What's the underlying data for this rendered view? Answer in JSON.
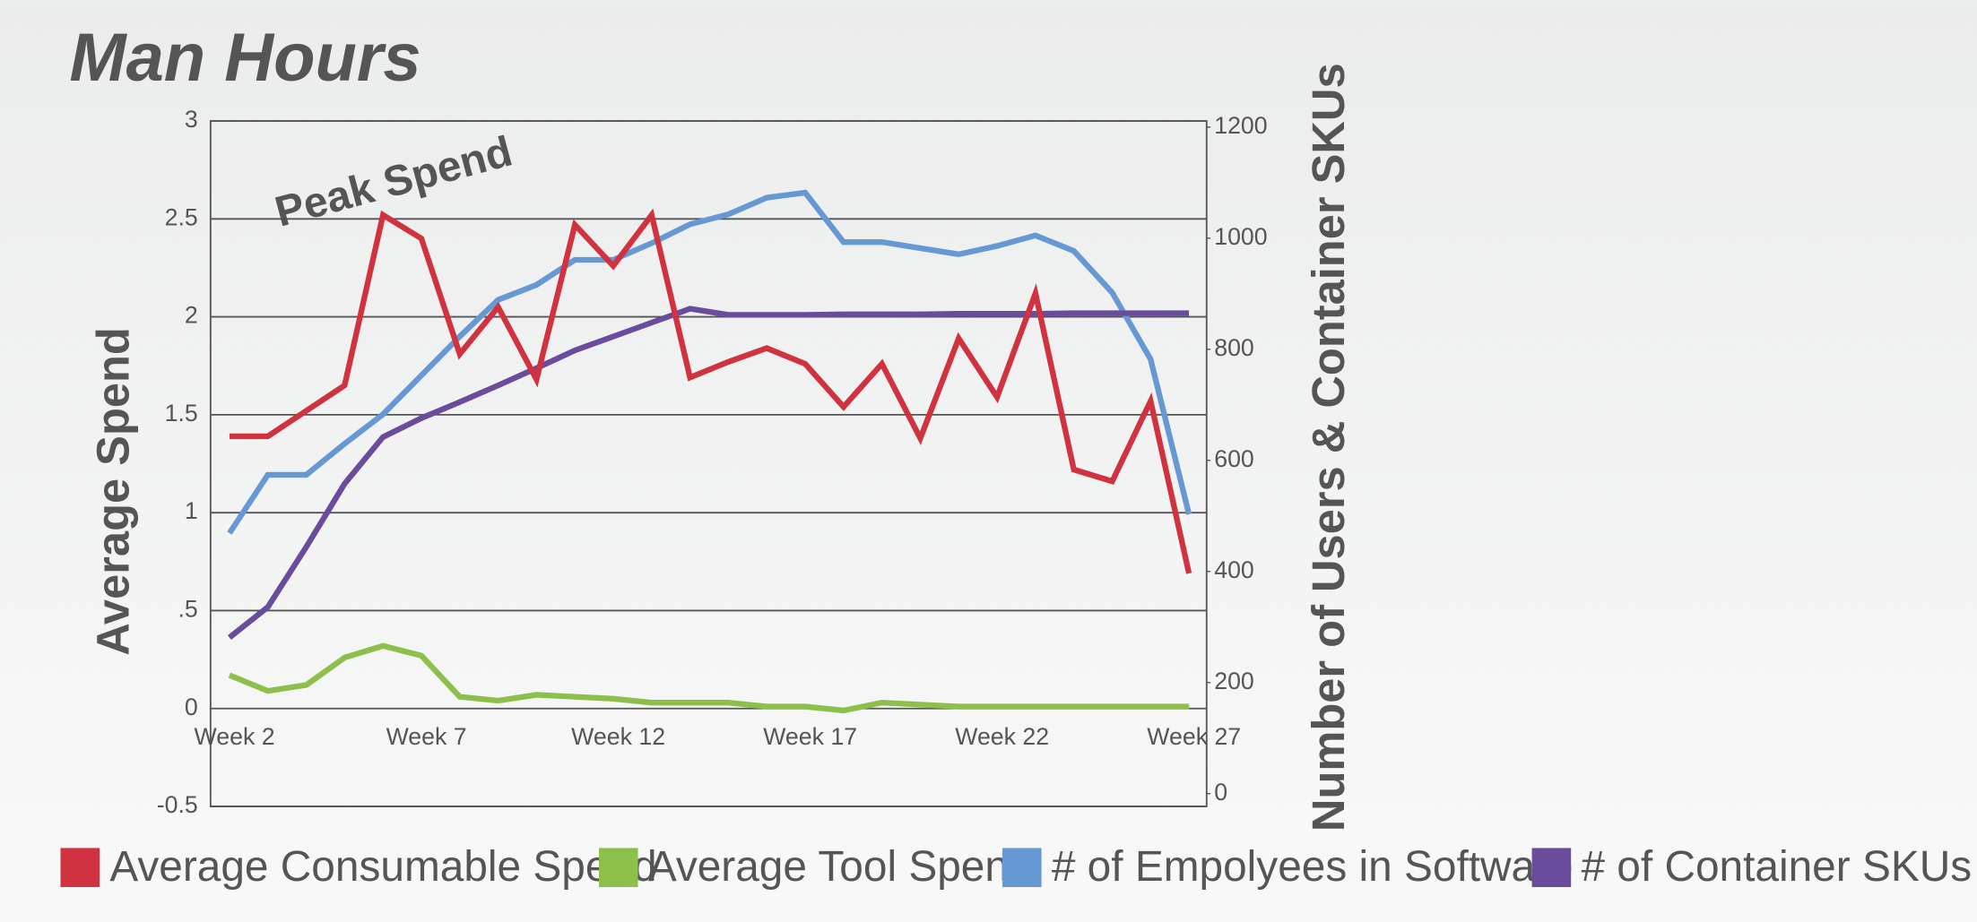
{
  "chart_data": {
    "type": "line",
    "title": "Man Hours",
    "annotation": "Peak Spend",
    "y_label": "Average Spend",
    "y2_label": "Number of Users & Container SKUs",
    "categories": [
      "Week 2",
      null,
      null,
      null,
      null,
      "Week 7",
      null,
      null,
      null,
      null,
      "Week 12",
      null,
      null,
      null,
      null,
      "Week 17",
      null,
      null,
      null,
      null,
      "Week 22",
      null,
      null,
      null,
      null,
      "Week 27"
    ],
    "series": [
      {
        "name": "Average Consumable Spend",
        "color": "#d0323f",
        "values": [
          1.39,
          1.39,
          1.52,
          1.65,
          2.52,
          2.4,
          1.81,
          2.05,
          1.68,
          2.47,
          2.26,
          2.52,
          1.69,
          1.77,
          1.84,
          1.76,
          1.54,
          1.76,
          1.38,
          1.89,
          1.59,
          2.12,
          1.22,
          1.16,
          1.57,
          0.69
        ]
      },
      {
        "name": "Average Tool Spend",
        "color": "#8cc04b",
        "values": [
          0.17,
          0.09,
          0.12,
          0.26,
          0.32,
          0.27,
          0.06,
          0.04,
          0.07,
          0.06,
          0.05,
          0.03,
          0.03,
          0.03,
          0.01,
          0.01,
          -0.01,
          0.03,
          0.02,
          0.01,
          0.01,
          0.01,
          0.01,
          0.01,
          0.01,
          0.01
        ]
      },
      {
        "name": "# of Empolyees in Software",
        "color": "#6699d3",
        "axis": "y2",
        "values": [
          469,
          574,
          574,
          630,
          683,
          753,
          823,
          889,
          916,
          961,
          961,
          991,
          1025,
          1043,
          1073,
          1082,
          993,
          993,
          982,
          971,
          986,
          1005,
          977,
          902,
          782,
          503
        ]
      },
      {
        "name": "# of Container SKUs",
        "color": "#6a4c9c",
        "axis": "y2",
        "values": [
          281,
          336,
          444,
          558,
          642,
          676,
          705,
          735,
          766,
          798,
          823,
          848,
          873,
          862,
          862,
          862,
          863,
          863,
          863,
          864,
          864,
          864,
          865,
          865,
          865,
          865
        ]
      }
    ],
    "ylim": [
      -0.5,
      3
    ],
    "yticks": [
      -0.5,
      0,
      {
        "value": 0.5,
        "label": ".5"
      },
      1,
      1.5,
      2,
      2.5,
      3
    ],
    "y2lim": [
      -23,
      1211
    ],
    "y2ticks": [
      0,
      200,
      400,
      600,
      800,
      1000,
      1200
    ],
    "grid": true,
    "legend": "bottom"
  }
}
